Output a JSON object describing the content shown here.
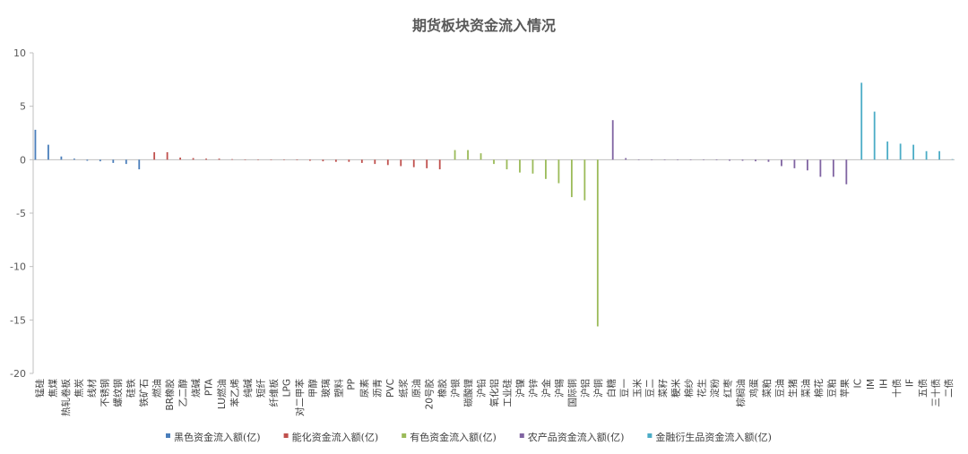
{
  "chart_data": {
    "type": "bar",
    "title": "期货板块资金流入情况",
    "categories": [
      "锰硅",
      "焦煤",
      "热轧卷板",
      "焦炭",
      "线材",
      "不锈钢",
      "螺纹钢",
      "硅铁",
      "铁矿石",
      "燃油",
      "BR橡胶",
      "乙二醇",
      "烧碱",
      "PTA",
      "LU燃油",
      "苯乙烯",
      "纯碱",
      "短纤",
      "纤维板",
      "LPG",
      "对二甲苯",
      "甲醇",
      "玻璃",
      "塑料",
      "PP",
      "尿素",
      "沥青",
      "PVC",
      "纸浆",
      "原油",
      "20号胶",
      "橡胶",
      "沪银",
      "碳酸锂",
      "沪铅",
      "氧化铝",
      "工业硅",
      "沪镍",
      "沪锌",
      "沪金",
      "沪锡",
      "国际铜",
      "沪铝",
      "沪铜",
      "白糖",
      "豆一",
      "玉米",
      "豆二",
      "菜籽",
      "粳米",
      "棉纱",
      "花生",
      "淀粉",
      "红枣",
      "棕榈油",
      "鸡蛋",
      "菜粕",
      "豆油",
      "生猪",
      "菜油",
      "棉花",
      "豆粕",
      "苹果",
      "IC",
      "IM",
      "IH",
      "十债",
      "IF",
      "五债",
      "三十债",
      "二债"
    ],
    "series": [
      {
        "name": "黑色资金流入额(亿)",
        "color": "#4a7ebb",
        "values": [
          2.8,
          1.4,
          0.3,
          0.1,
          -0.1,
          -0.15,
          -0.3,
          -0.4,
          -0.9,
          null,
          null,
          null,
          null,
          null,
          null,
          null,
          null,
          null,
          null,
          null,
          null,
          null,
          null,
          null,
          null,
          null,
          null,
          null,
          null,
          null,
          null,
          null,
          null,
          null,
          null,
          null,
          null,
          null,
          null,
          null,
          null,
          null,
          null,
          null,
          null,
          null,
          null,
          null,
          null,
          null,
          null,
          null,
          null,
          null,
          null,
          null,
          null,
          null,
          null,
          null,
          null,
          null,
          null,
          null,
          null,
          null,
          null,
          null,
          null,
          null,
          null
        ]
      },
      {
        "name": "能化资金流入额(亿)",
        "color": "#c0504d",
        "values": [
          null,
          null,
          null,
          null,
          null,
          null,
          null,
          null,
          null,
          0.7,
          0.7,
          0.2,
          0.15,
          0.1,
          0.1,
          0.05,
          0,
          0,
          0,
          0,
          -0.05,
          -0.1,
          -0.15,
          -0.2,
          -0.2,
          -0.3,
          -0.4,
          -0.5,
          -0.6,
          -0.7,
          -0.8,
          -0.9,
          null,
          null,
          null,
          null,
          null,
          null,
          null,
          null,
          null,
          null,
          null,
          null,
          null,
          null,
          null,
          null,
          null,
          null,
          null,
          null,
          null,
          null,
          null,
          null,
          null,
          null,
          null,
          null,
          null,
          null,
          null,
          null,
          null,
          null,
          null,
          null,
          null,
          null,
          null
        ]
      },
      {
        "name": "有色资金流入额(亿)",
        "color": "#9bbb59",
        "values": [
          null,
          null,
          null,
          null,
          null,
          null,
          null,
          null,
          null,
          null,
          null,
          null,
          null,
          null,
          null,
          null,
          null,
          null,
          null,
          null,
          null,
          null,
          null,
          null,
          null,
          null,
          null,
          null,
          null,
          null,
          null,
          null,
          0.9,
          0.9,
          0.6,
          -0.4,
          -0.9,
          -1.2,
          -1.3,
          -1.8,
          -2.2,
          -3.5,
          -3.8,
          -15.6,
          null,
          null,
          null,
          null,
          null,
          null,
          null,
          null,
          null,
          null,
          null,
          null,
          null,
          null,
          null,
          null,
          null,
          null,
          null,
          null,
          null,
          null,
          null,
          null,
          null,
          null,
          null
        ]
      },
      {
        "name": "农产品资金流入额(亿)",
        "color": "#8064a2",
        "values": [
          null,
          null,
          null,
          null,
          null,
          null,
          null,
          null,
          null,
          null,
          null,
          null,
          null,
          null,
          null,
          null,
          null,
          null,
          null,
          null,
          null,
          null,
          null,
          null,
          null,
          null,
          null,
          null,
          null,
          null,
          null,
          null,
          null,
          null,
          null,
          null,
          null,
          null,
          null,
          null,
          null,
          null,
          null,
          null,
          3.7,
          0.15,
          0,
          0,
          0,
          0,
          0,
          0,
          -0.05,
          -0.1,
          -0.1,
          -0.15,
          -0.2,
          -0.6,
          -0.8,
          -1.0,
          -1.6,
          -1.6,
          -2.3,
          null,
          null,
          null,
          null,
          null,
          null,
          null,
          null
        ]
      },
      {
        "name": "金融衍生品资金流入额(亿)",
        "color": "#4bacc6",
        "values": [
          null,
          null,
          null,
          null,
          null,
          null,
          null,
          null,
          null,
          null,
          null,
          null,
          null,
          null,
          null,
          null,
          null,
          null,
          null,
          null,
          null,
          null,
          null,
          null,
          null,
          null,
          null,
          null,
          null,
          null,
          null,
          null,
          null,
          null,
          null,
          null,
          null,
          null,
          null,
          null,
          null,
          null,
          null,
          null,
          null,
          null,
          null,
          null,
          null,
          null,
          null,
          null,
          null,
          null,
          null,
          null,
          null,
          null,
          null,
          null,
          null,
          null,
          null,
          7.2,
          4.5,
          1.7,
          1.5,
          1.4,
          0.8,
          0.8,
          0.05
        ]
      }
    ],
    "ylim": [
      -20,
      10
    ],
    "yticks": [
      -20,
      -15,
      -10,
      -5,
      0,
      5,
      10
    ]
  }
}
